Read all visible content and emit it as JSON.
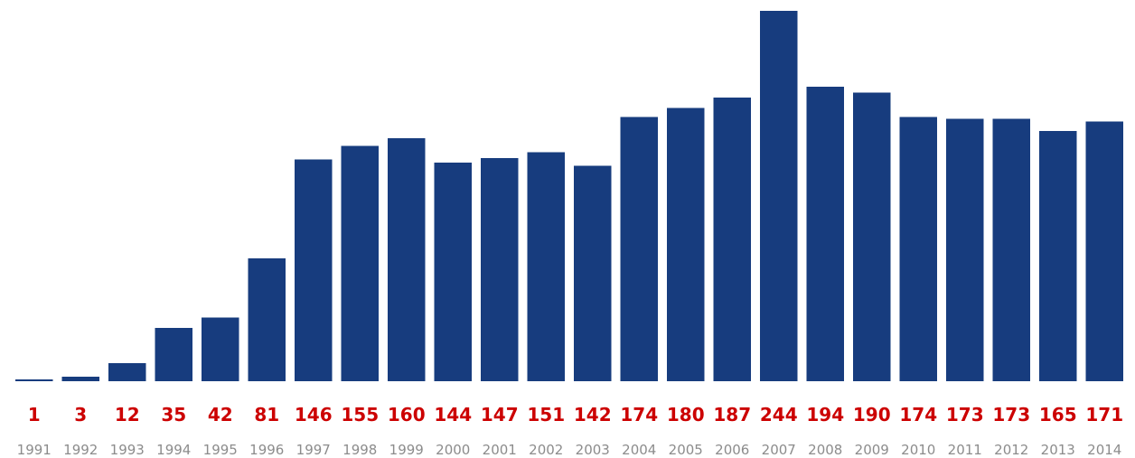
{
  "chart_data": {
    "type": "bar",
    "categories": [
      "1991",
      "1992",
      "1993",
      "1994",
      "1995",
      "1996",
      "1997",
      "1998",
      "1999",
      "2000",
      "2001",
      "2002",
      "2003",
      "2004",
      "2005",
      "2006",
      "2007",
      "2008",
      "2009",
      "2010",
      "2011",
      "2012",
      "2013",
      "2014"
    ],
    "values": [
      1,
      3,
      12,
      35,
      42,
      81,
      146,
      155,
      160,
      144,
      147,
      151,
      142,
      174,
      180,
      187,
      244,
      194,
      190,
      174,
      173,
      173,
      165,
      171
    ],
    "value_labels": [
      "1",
      "3",
      "12",
      "35",
      "42",
      "81",
      "146",
      "155",
      "160",
      "144",
      "147",
      "151",
      "142",
      "174",
      "180",
      "187",
      "244",
      "194",
      "190",
      "174",
      "173",
      "173",
      "165",
      "171"
    ],
    "ylim": [
      0,
      244
    ],
    "grid": false,
    "legend": "none",
    "colors": {
      "bar": "#173c7e",
      "value_label": "#cc0000",
      "category_label": "#8c8c8c"
    }
  }
}
